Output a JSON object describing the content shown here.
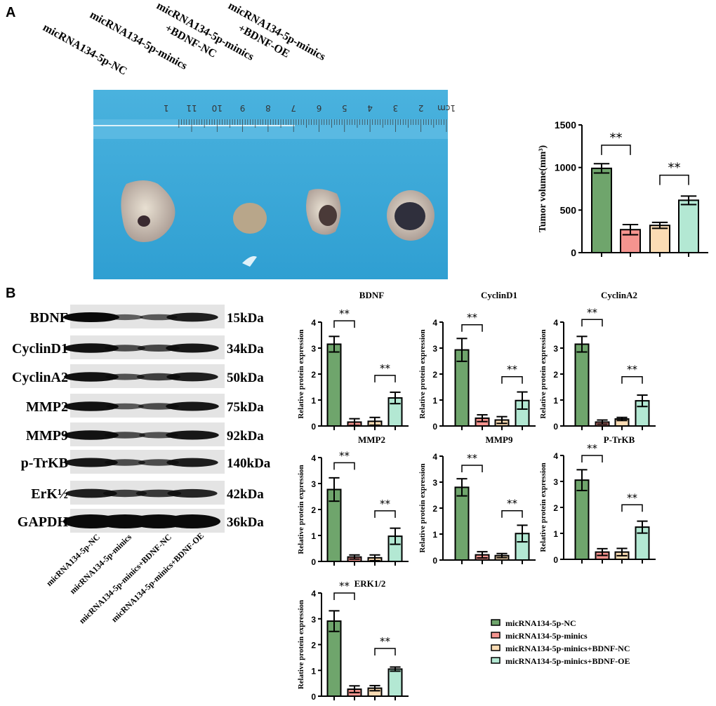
{
  "panels": {
    "a": "A",
    "b": "B"
  },
  "groups": [
    "micRNA134-5p-NC",
    "micRNA134-5p-minics",
    "micRNA134-5p-minics+BDNF-NC",
    "micRNA134-5p-minics+BDNF-OE"
  ],
  "photo_labels": [
    {
      "line1": "micRNA134-5p-NC",
      "line2": ""
    },
    {
      "line1": "micRNA134-5p-minics",
      "line2": ""
    },
    {
      "line1": "micRNA134-5p-minics",
      "line2": "+BDNF-NC"
    },
    {
      "line1": "micRNA134-5p-minics",
      "line2": "+BDNF-OE"
    }
  ],
  "ruler_labels": [
    "1cm",
    "2",
    "3",
    "4",
    "5",
    "6",
    "7",
    "8",
    "9",
    "10",
    "11",
    "1"
  ],
  "colors": {
    "nc": "#6fa56c",
    "minics": "#f4948f",
    "bdnf_nc": "#fbdcb4",
    "bdnf_oe": "#b3e8d3",
    "photo_bg": "#3aa9d8"
  },
  "western_blot": {
    "rows": [
      {
        "protein": "BDNF",
        "size": "15kDa"
      },
      {
        "protein": "CyclinD1",
        "size": "34kDa"
      },
      {
        "protein": "CyclinA2",
        "size": "50kDa"
      },
      {
        "protein": "MMP2",
        "size": "75kDa"
      },
      {
        "protein": "MMP9",
        "size": "92kDa"
      },
      {
        "protein": "p-TrKB",
        "size": "140kDa"
      },
      {
        "protein": "ErK½",
        "size": "42kDa"
      },
      {
        "protein": "GAPDH",
        "size": "36kDa"
      }
    ],
    "intensity": [
      [
        1.0,
        0.35,
        0.4,
        0.85
      ],
      [
        0.95,
        0.5,
        0.55,
        0.9
      ],
      [
        0.95,
        0.45,
        0.6,
        0.85
      ],
      [
        0.95,
        0.4,
        0.5,
        0.9
      ],
      [
        0.95,
        0.5,
        0.45,
        0.9
      ],
      [
        0.9,
        0.5,
        0.5,
        0.85
      ],
      [
        0.85,
        0.6,
        0.65,
        0.8
      ],
      [
        1.0,
        1.0,
        1.0,
        1.0
      ]
    ]
  },
  "legend": [
    "micRNA134-5p-NC",
    "micRNA134-5p-minics",
    "micRNA134-5p-minics+BDNF-NC",
    "micRNA134-5p-minics+BDNF-OE"
  ],
  "chart_data": [
    {
      "type": "bar",
      "title": "",
      "ylabel": "Tumor volume(mm³)",
      "ylim": [
        0,
        1500
      ],
      "yticks": [
        "0",
        "500",
        "1000",
        "1500"
      ],
      "categories": [
        "micRNA134-5p-NC",
        "micRNA134-5p-minics",
        "micRNA134-5p-minics+BDNF-NC",
        "micRNA134-5p-minics+BDNF-OE"
      ],
      "values": [
        990,
        270,
        320,
        615
      ],
      "errors": [
        55,
        60,
        35,
        50
      ],
      "significance": [
        {
          "pair": [
            0,
            1
          ],
          "label": "**",
          "y": 1262
        },
        {
          "pair": [
            2,
            3
          ],
          "label": "**",
          "y": 910
        }
      ]
    },
    {
      "type": "bar",
      "title": "BDNF",
      "ylabel": "Relative protein expression",
      "ylim": [
        0,
        4
      ],
      "yticks": [
        "0",
        "1",
        "2",
        "3",
        "4"
      ],
      "values": [
        3.15,
        0.15,
        0.18,
        1.08
      ],
      "errors": [
        0.3,
        0.13,
        0.15,
        0.22
      ],
      "significance": [
        {
          "pair": [
            0,
            1
          ],
          "label": "**",
          "y": 4.05
        },
        {
          "pair": [
            2,
            3
          ],
          "label": "**",
          "y": 1.95
        }
      ]
    },
    {
      "type": "bar",
      "title": "CyclinD1",
      "ylabel": "Relative protein expression",
      "ylim": [
        0,
        4
      ],
      "yticks": [
        "0",
        "1",
        "2",
        "3",
        "4"
      ],
      "values": [
        2.93,
        0.3,
        0.23,
        0.98
      ],
      "errors": [
        0.44,
        0.13,
        0.13,
        0.33
      ],
      "significance": [
        {
          "pair": [
            0,
            1
          ],
          "label": "**",
          "y": 3.9
        },
        {
          "pair": [
            2,
            3
          ],
          "label": "**",
          "y": 1.9
        }
      ]
    },
    {
      "type": "bar",
      "title": "CyclinA2",
      "ylabel": "Relative protein expression",
      "ylim": [
        0,
        4
      ],
      "yticks": [
        "0",
        "1",
        "2",
        "3",
        "4"
      ],
      "values": [
        3.15,
        0.15,
        0.27,
        0.97
      ],
      "errors": [
        0.3,
        0.08,
        0.06,
        0.22
      ],
      "significance": [
        {
          "pair": [
            0,
            1
          ],
          "label": "**",
          "y": 4.1
        },
        {
          "pair": [
            2,
            3
          ],
          "label": "**",
          "y": 1.9
        }
      ]
    },
    {
      "type": "bar",
      "title": "MMP2",
      "ylabel": "Relative protein expression",
      "ylim": [
        0,
        4
      ],
      "yticks": [
        "0",
        "1",
        "2",
        "3",
        "4"
      ],
      "values": [
        2.77,
        0.17,
        0.14,
        0.97
      ],
      "errors": [
        0.45,
        0.08,
        0.11,
        0.31
      ],
      "significance": [
        {
          "pair": [
            0,
            1
          ],
          "label": "**",
          "y": 3.8
        },
        {
          "pair": [
            2,
            3
          ],
          "label": "**",
          "y": 1.95
        }
      ]
    },
    {
      "type": "bar",
      "title": "MMP9",
      "ylabel": "Relative protein expression",
      "ylim": [
        0,
        4
      ],
      "yticks": [
        "0",
        "1",
        "2",
        "3",
        "4"
      ],
      "values": [
        2.8,
        0.2,
        0.17,
        1.02
      ],
      "errors": [
        0.33,
        0.12,
        0.08,
        0.32
      ],
      "significance": [
        {
          "pair": [
            0,
            1
          ],
          "label": "**",
          "y": 3.65
        },
        {
          "pair": [
            2,
            3
          ],
          "label": "**",
          "y": 1.9
        }
      ]
    },
    {
      "type": "bar",
      "title": "P-TrKB",
      "ylabel": "Relative protein expression",
      "ylim": [
        0,
        4
      ],
      "yticks": [
        "0",
        "1",
        "2",
        "3",
        "4"
      ],
      "values": [
        3.05,
        0.28,
        0.28,
        1.24
      ],
      "errors": [
        0.4,
        0.13,
        0.14,
        0.23
      ],
      "significance": [
        {
          "pair": [
            0,
            1
          ],
          "label": "**",
          "y": 4.0
        },
        {
          "pair": [
            2,
            3
          ],
          "label": "**",
          "y": 2.1
        }
      ]
    },
    {
      "type": "bar",
      "title": "ERK1/2",
      "ylabel": "Relative protein expression",
      "ylim": [
        0,
        4
      ],
      "yticks": [
        "0",
        "1",
        "2",
        "3",
        "4"
      ],
      "values": [
        2.91,
        0.27,
        0.31,
        1.05
      ],
      "errors": [
        0.4,
        0.13,
        0.1,
        0.08
      ],
      "significance": [
        {
          "pair": [
            0,
            1
          ],
          "label": "**",
          "y": 4.0
        },
        {
          "pair": [
            2,
            3
          ],
          "label": "**",
          "y": 1.85
        }
      ]
    }
  ]
}
